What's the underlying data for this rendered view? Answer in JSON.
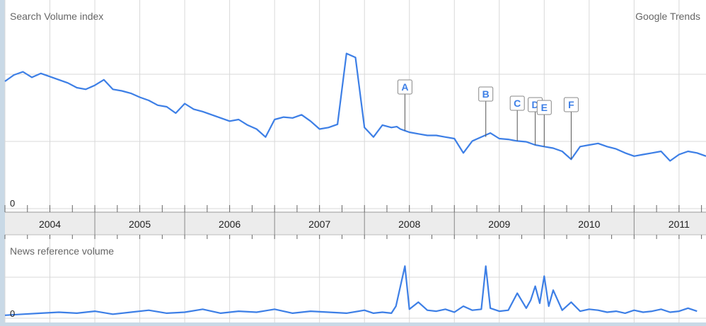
{
  "chart_data": [
    {
      "type": "line",
      "title": "Search Volume index",
      "brand": "Google Trends",
      "y_zero_label": "0",
      "ylim": [
        0,
        2.0
      ],
      "grid": true,
      "line_color": "#3d7fe6",
      "x_axis": {
        "years": [
          "2004",
          "2005",
          "2006",
          "2007",
          "2008",
          "2009",
          "2010",
          "2011"
        ]
      },
      "series": [
        {
          "x": [
            2003.5,
            2003.6,
            2003.7,
            2003.8,
            2003.9,
            2004.0,
            2004.1,
            2004.2,
            2004.3,
            2004.4,
            2004.5,
            2004.6,
            2004.7,
            2004.8,
            2004.9,
            2005.0,
            2005.1,
            2005.2,
            2005.3,
            2005.4,
            2005.5,
            2005.6,
            2005.7,
            2005.8,
            2005.9,
            2006.0,
            2006.1,
            2006.2,
            2006.3,
            2006.4,
            2006.5,
            2006.6,
            2006.7,
            2006.8,
            2006.9,
            2007.0,
            2007.1,
            2007.2,
            2007.3,
            2007.4,
            2007.5,
            2007.6,
            2007.7,
            2007.8,
            2007.86,
            2007.9,
            2007.95,
            2008.0,
            2008.1,
            2008.2,
            2008.3,
            2008.4,
            2008.5,
            2008.6,
            2008.7,
            2008.8,
            2008.9,
            2009.0,
            2009.1,
            2009.2,
            2009.3,
            2009.4,
            2009.5,
            2009.6,
            2009.7,
            2009.8,
            2009.9,
            2010.0,
            2010.1,
            2010.2,
            2010.3,
            2010.4,
            2010.5,
            2010.6,
            2010.7,
            2010.8,
            2010.9,
            2011.0,
            2011.1,
            2011.2,
            2011.3
          ],
          "values": [
            1.6,
            1.68,
            1.72,
            1.65,
            1.7,
            1.66,
            1.62,
            1.58,
            1.52,
            1.5,
            1.55,
            1.62,
            1.5,
            1.48,
            1.45,
            1.4,
            1.36,
            1.3,
            1.28,
            1.2,
            1.32,
            1.25,
            1.22,
            1.18,
            1.14,
            1.1,
            1.12,
            1.05,
            1.0,
            0.9,
            1.12,
            1.15,
            1.14,
            1.18,
            1.1,
            1.0,
            1.02,
            1.06,
            1.95,
            1.9,
            1.02,
            0.9,
            1.05,
            1.02,
            1.03,
            1.0,
            0.98,
            0.96,
            0.94,
            0.92,
            0.92,
            0.9,
            0.88,
            0.7,
            0.85,
            0.9,
            0.95,
            0.88,
            0.87,
            0.85,
            0.84,
            0.8,
            0.78,
            0.76,
            0.72,
            0.62,
            0.78,
            0.8,
            0.82,
            0.78,
            0.75,
            0.7,
            0.66,
            0.68,
            0.7,
            0.72,
            0.6,
            0.68,
            0.72,
            0.7,
            0.66
          ]
        }
      ],
      "annotations": [
        {
          "label": "A",
          "x": 2007.95
        },
        {
          "label": "B",
          "x": 2008.85
        },
        {
          "label": "C",
          "x": 2009.2
        },
        {
          "label": "D",
          "x": 2009.4
        },
        {
          "label": "E",
          "x": 2009.5
        },
        {
          "label": "F",
          "x": 2009.8
        }
      ]
    },
    {
      "type": "line",
      "title": "News reference volume",
      "y_zero_label": "0",
      "ylim": [
        0,
        6.0
      ],
      "grid": true,
      "line_color": "#3d7fe6",
      "series": [
        {
          "x": [
            2003.5,
            2003.7,
            2003.9,
            2004.1,
            2004.3,
            2004.5,
            2004.7,
            2004.9,
            2005.1,
            2005.3,
            2005.5,
            2005.7,
            2005.9,
            2006.1,
            2006.3,
            2006.5,
            2006.7,
            2006.9,
            2007.1,
            2007.3,
            2007.5,
            2007.6,
            2007.7,
            2007.8,
            2007.85,
            2007.95,
            2008.0,
            2008.1,
            2008.2,
            2008.3,
            2008.4,
            2008.5,
            2008.6,
            2008.7,
            2008.8,
            2008.85,
            2008.9,
            2009.0,
            2009.1,
            2009.2,
            2009.3,
            2009.35,
            2009.4,
            2009.45,
            2009.5,
            2009.55,
            2009.6,
            2009.7,
            2009.8,
            2009.9,
            2010.0,
            2010.1,
            2010.2,
            2010.3,
            2010.4,
            2010.5,
            2010.6,
            2010.7,
            2010.8,
            2010.9,
            2011.0,
            2011.1,
            2011.2
          ],
          "values": [
            0.3,
            0.4,
            0.5,
            0.6,
            0.5,
            0.7,
            0.4,
            0.6,
            0.8,
            0.5,
            0.6,
            0.9,
            0.5,
            0.7,
            0.6,
            0.9,
            0.5,
            0.7,
            0.6,
            0.5,
            0.8,
            0.5,
            0.6,
            0.5,
            1.2,
            5.2,
            0.9,
            1.6,
            0.8,
            0.7,
            0.9,
            0.6,
            1.2,
            0.8,
            0.9,
            5.2,
            1.0,
            0.7,
            0.8,
            2.5,
            1.0,
            1.8,
            3.2,
            1.5,
            4.2,
            1.2,
            2.8,
            0.8,
            1.6,
            0.7,
            0.9,
            0.8,
            0.6,
            0.7,
            0.5,
            0.8,
            0.6,
            0.7,
            0.9,
            0.6,
            0.7,
            1.0,
            0.7
          ]
        }
      ]
    }
  ]
}
